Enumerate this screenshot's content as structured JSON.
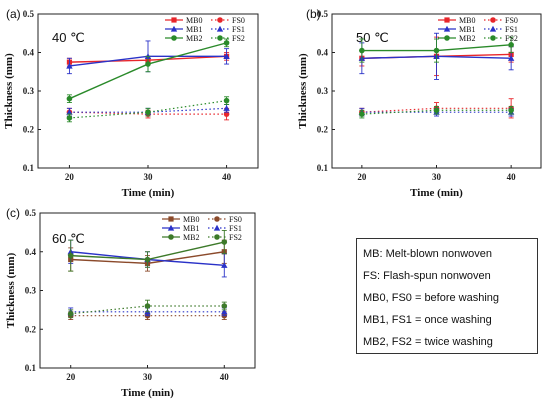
{
  "figure": {
    "key_lines": [
      "MB: Melt-blown nonwoven",
      "FS: Flash-spun nonwoven",
      "MB0, FS0 = before washing",
      "MB1, FS1 = once washing",
      "MB2, FS2 = twice washing"
    ]
  },
  "chart_data": [
    {
      "type": "line",
      "panel_label": "(a)",
      "annotation": "40 ℃",
      "xlabel": "Time (min)",
      "ylabel": "Thickness (mm)",
      "x": [
        20,
        30,
        40
      ],
      "xlim": [
        16,
        44
      ],
      "ylim": [
        0.1,
        0.5
      ],
      "yticks": [
        0.1,
        0.2,
        0.3,
        0.4,
        0.5
      ],
      "legend_position": "top-right",
      "series": [
        {
          "name": "MB0",
          "values": [
            0.375,
            0.38,
            0.39
          ],
          "errors": [
            0.01,
            0.01,
            0.01
          ],
          "color": "#e8262b",
          "marker": "square",
          "dash": "solid"
        },
        {
          "name": "MB1",
          "values": [
            0.365,
            0.39,
            0.39
          ],
          "errors": [
            0.02,
            0.04,
            0.02
          ],
          "color": "#2a32c8",
          "marker": "triangle",
          "dash": "solid"
        },
        {
          "name": "MB2",
          "values": [
            0.28,
            0.37,
            0.425
          ],
          "errors": [
            0.01,
            0.02,
            0.01
          ],
          "color": "#2a8a2a",
          "marker": "circle",
          "dash": "solid"
        },
        {
          "name": "FS0",
          "values": [
            0.245,
            0.24,
            0.24
          ],
          "errors": [
            0.01,
            0.01,
            0.015
          ],
          "color": "#e8262b",
          "marker": "circle",
          "dash": "dotted"
        },
        {
          "name": "FS1",
          "values": [
            0.245,
            0.245,
            0.255
          ],
          "errors": [
            0.01,
            0.01,
            0.01
          ],
          "color": "#2a32c8",
          "marker": "triangle",
          "dash": "dotted"
        },
        {
          "name": "FS2",
          "values": [
            0.23,
            0.245,
            0.275
          ],
          "errors": [
            0.01,
            0.01,
            0.01
          ],
          "color": "#2a8a2a",
          "marker": "circle",
          "dash": "dotted"
        }
      ]
    },
    {
      "type": "line",
      "panel_label": "(b)",
      "annotation": "50 ℃",
      "xlabel": "Time (min)",
      "ylabel": "Thickness (mm)",
      "x": [
        20,
        30,
        40
      ],
      "xlim": [
        16,
        44
      ],
      "ylim": [
        0.1,
        0.5
      ],
      "yticks": [
        0.1,
        0.2,
        0.3,
        0.4,
        0.5
      ],
      "legend_position": "top-right",
      "series": [
        {
          "name": "MB0",
          "values": [
            0.385,
            0.39,
            0.395
          ],
          "errors": [
            0.02,
            0.05,
            0.02
          ],
          "color": "#e8262b",
          "marker": "square",
          "dash": "solid"
        },
        {
          "name": "MB1",
          "values": [
            0.385,
            0.39,
            0.385
          ],
          "errors": [
            0.04,
            0.06,
            0.03
          ],
          "color": "#2a32c8",
          "marker": "triangle",
          "dash": "solid"
        },
        {
          "name": "MB2",
          "values": [
            0.405,
            0.405,
            0.42
          ],
          "errors": [
            0.03,
            0.03,
            0.02
          ],
          "color": "#2a8a2a",
          "marker": "circle",
          "dash": "solid"
        },
        {
          "name": "FS0",
          "values": [
            0.245,
            0.255,
            0.255
          ],
          "errors": [
            0.01,
            0.015,
            0.025
          ],
          "color": "#e8262b",
          "marker": "circle",
          "dash": "dotted"
        },
        {
          "name": "FS1",
          "values": [
            0.245,
            0.245,
            0.245
          ],
          "errors": [
            0.01,
            0.01,
            0.01
          ],
          "color": "#2a32c8",
          "marker": "triangle",
          "dash": "dotted"
        },
        {
          "name": "FS2",
          "values": [
            0.24,
            0.25,
            0.25
          ],
          "errors": [
            0.01,
            0.01,
            0.01
          ],
          "color": "#2a8a2a",
          "marker": "circle",
          "dash": "dotted"
        }
      ]
    },
    {
      "type": "line",
      "panel_label": "(c)",
      "annotation": "60 ℃",
      "xlabel": "Time (min)",
      "ylabel": "Thickness (mm)",
      "x": [
        20,
        30,
        40
      ],
      "xlim": [
        16,
        44
      ],
      "ylim": [
        0.1,
        0.5
      ],
      "yticks": [
        0.1,
        0.2,
        0.3,
        0.4,
        0.5
      ],
      "legend_position": "top-right",
      "series": [
        {
          "name": "MB0",
          "values": [
            0.38,
            0.37,
            0.4
          ],
          "errors": [
            0.03,
            0.02,
            0.03
          ],
          "color": "#8b4a2b",
          "marker": "square",
          "dash": "solid"
        },
        {
          "name": "MB1",
          "values": [
            0.4,
            0.38,
            0.365
          ],
          "errors": [
            0.03,
            0.02,
            0.03
          ],
          "color": "#2a32c8",
          "marker": "triangle",
          "dash": "solid"
        },
        {
          "name": "MB2",
          "values": [
            0.39,
            0.38,
            0.425
          ],
          "errors": [
            0.04,
            0.02,
            0.03
          ],
          "color": "#3d7a2a",
          "marker": "circle",
          "dash": "solid"
        },
        {
          "name": "FS0",
          "values": [
            0.235,
            0.235,
            0.235
          ],
          "errors": [
            0.01,
            0.01,
            0.01
          ],
          "color": "#8b4a2b",
          "marker": "circle",
          "dash": "dotted"
        },
        {
          "name": "FS1",
          "values": [
            0.245,
            0.245,
            0.245
          ],
          "errors": [
            0.01,
            0.01,
            0.01
          ],
          "color": "#2a32c8",
          "marker": "triangle",
          "dash": "dotted"
        },
        {
          "name": "FS2",
          "values": [
            0.24,
            0.26,
            0.26
          ],
          "errors": [
            0.01,
            0.015,
            0.01
          ],
          "color": "#3d7a2a",
          "marker": "circle",
          "dash": "dotted"
        }
      ]
    }
  ]
}
